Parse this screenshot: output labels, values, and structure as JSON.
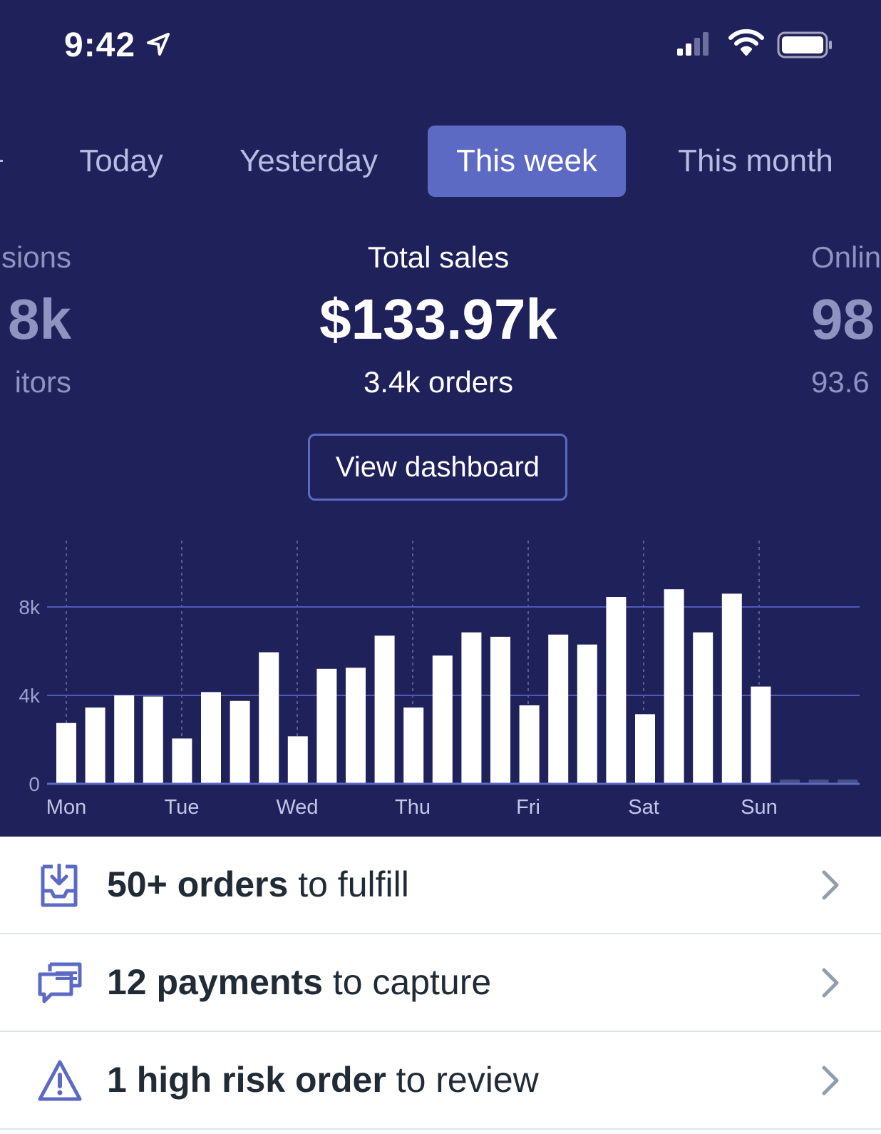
{
  "status_bar": {
    "time": "9:42",
    "icons": [
      "location-arrow-icon",
      "signal-icon",
      "wifi-icon",
      "battery-icon"
    ]
  },
  "tabs": [
    {
      "label": "Today",
      "active": false
    },
    {
      "label": "Yesterday",
      "active": false
    },
    {
      "label": "This week",
      "active": true
    },
    {
      "label": "This month",
      "active": false
    }
  ],
  "metrics": {
    "left": {
      "label": "sions",
      "value": "8k",
      "sub": "itors"
    },
    "center": {
      "label": "Total sales",
      "value": "$133.97k",
      "sub": "3.4k orders"
    },
    "right": {
      "label": "Onlin",
      "value": "98",
      "sub": "93.6"
    }
  },
  "view_dashboard_label": "View dashboard",
  "chart_data": {
    "type": "bar",
    "x_ticks": [
      "Mon",
      "Tue",
      "Wed",
      "Thu",
      "Fri",
      "Sat",
      "Sun"
    ],
    "y_ticks": [
      "0",
      "4k",
      "8k"
    ],
    "ylim": [
      0,
      11000
    ],
    "grid": true,
    "values": [
      2750,
      3450,
      4000,
      3950,
      2050,
      4150,
      3750,
      5950,
      2150,
      5200,
      5250,
      6700,
      3450,
      5800,
      6850,
      6650,
      3550,
      6750,
      6300,
      8450,
      3150,
      8800,
      6850,
      8600,
      4400,
      0,
      0,
      0
    ]
  },
  "colors": {
    "background": "#1f215b",
    "accent": "#5c6ac4",
    "bar": "#ffffff",
    "row_text": "#212b36"
  },
  "tasks": [
    {
      "icon": "inbox-download-icon",
      "bold": "50+ orders",
      "rest": " to fulfill"
    },
    {
      "icon": "payment-cards-icon",
      "bold": "12 payments",
      "rest": " to capture"
    },
    {
      "icon": "warning-triangle-icon",
      "bold": "1 high risk order",
      "rest": " to review"
    }
  ]
}
